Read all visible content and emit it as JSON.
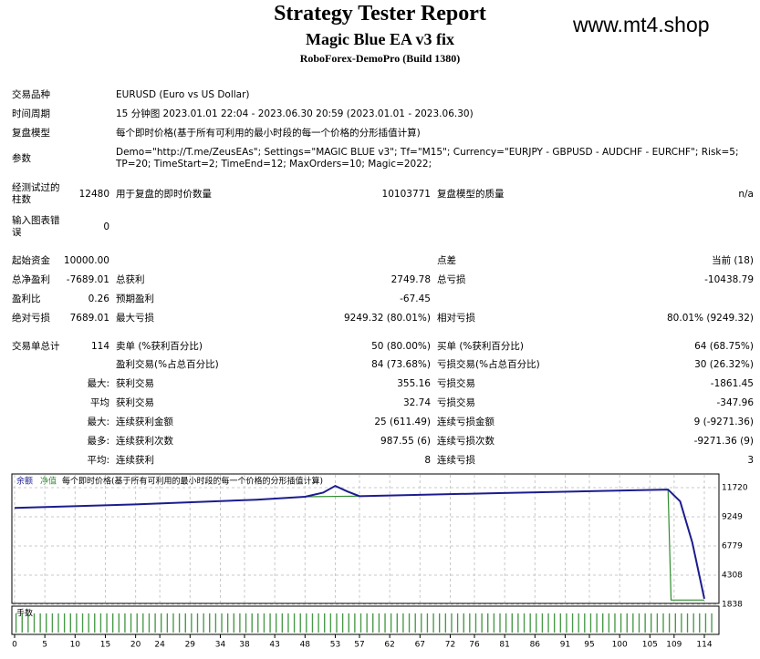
{
  "header": {
    "title": "Strategy Tester Report",
    "subtitle": "Magic Blue EA v3 fix",
    "server": "RoboForex-DemoPro (Build 1380)",
    "watermark": "www.mt4.shop"
  },
  "rows": [
    {
      "c1": "交易品种",
      "c3": "EURUSD (Euro vs US Dollar)"
    },
    {
      "c1": "时间周期",
      "c3": "15 分钟图 2023.01.01 22:04 - 2023.06.30 20:59 (2023.01.01 - 2023.06.30)"
    },
    {
      "c1": "复盘模型",
      "c3": "每个即时价格(基于所有可利用的最小时段的每一个价格的分形插值计算)"
    },
    {
      "c1": "参数",
      "c3": "Demo=\"http://T.me/ZeusEAs\"; Settings=\"MAGIC BLUE v3\"; Tf=\"M15\"; Currency=\"EURJPY - GBPUSD - AUDCHF - EURCHF\"; Risk=5; TP=20; TimeStart=2; TimeEnd=12; MaxOrders=10; Magic=2022;"
    },
    {
      "c1": "经测试过的柱数",
      "c2": "12480",
      "c3": "用于复盘的即时价数量",
      "c4": "10103771",
      "c5": "复盘模型的质量",
      "c6": "n/a"
    },
    {
      "c1": "输入图表错误",
      "c2": "0"
    },
    {
      "c1": "起始资金",
      "c2": "10000.00",
      "c5": "点差",
      "c6": "当前 (18)"
    },
    {
      "c1": "总净盈利",
      "c2": "-7689.01",
      "c3": "总获利",
      "c4": "2749.78",
      "c5": "总亏损",
      "c6": "-10438.79"
    },
    {
      "c1": "盈利比",
      "c2": "0.26",
      "c3": "预期盈利",
      "c4": "-67.45"
    },
    {
      "c1": "绝对亏损",
      "c2": "7689.01",
      "c3": "最大亏损",
      "c4": "9249.32 (80.01%)",
      "c5": "相对亏损",
      "c6": "80.01% (9249.32)"
    },
    {
      "c1": "交易单总计",
      "c2": "114",
      "c3": "卖单 (%获利百分比)",
      "c4": "50 (80.00%)",
      "c5": "买单 (%获利百分比)",
      "c6": "64 (68.75%)"
    },
    {
      "c3": "盈利交易(%占总百分比)",
      "c4": "84 (73.68%)",
      "c5": "亏损交易(%占总百分比)",
      "c6": "30 (26.32%)"
    },
    {
      "c2": "最大:",
      "c3": "获利交易",
      "c4": "355.16",
      "c5": "亏损交易",
      "c6": "-1861.45"
    },
    {
      "c2": "平均",
      "c3": "获利交易",
      "c4": "32.74",
      "c5": "亏损交易",
      "c6": "-347.96"
    },
    {
      "c2": "最大:",
      "c3": "连续获利金额",
      "c4": "25 (611.49)",
      "c5": "连续亏损金额",
      "c6": "9 (-9271.36)"
    },
    {
      "c2": "最多:",
      "c3": "连续获利次数",
      "c4": "987.55 (6)",
      "c5": "连续亏损次数",
      "c6": "-9271.36 (9)"
    },
    {
      "c2": "平均:",
      "c3": "连续获利",
      "c4": "8",
      "c5": "连续亏损",
      "c6": "3"
    }
  ],
  "chart": {
    "type": "line",
    "legend": [
      "余额",
      "净值",
      "每个即时价格(基于所有可利用的最小时段的每一个价格的分形插值计算)"
    ],
    "volume_label": "手数",
    "xlim": [
      0,
      114
    ],
    "ylim": [
      1684,
      12724
    ],
    "xticks": [
      0,
      5,
      10,
      15,
      20,
      24,
      29,
      34,
      38,
      43,
      48,
      53,
      57,
      62,
      67,
      72,
      76,
      81,
      86,
      91,
      95,
      100,
      105,
      109,
      114
    ],
    "yticks": [
      11720,
      9249,
      6779,
      4308,
      1838
    ],
    "series": [
      {
        "name": "余额",
        "color": "#1c1c8f",
        "x": [
          0,
          20,
          40,
          48,
          51,
          53,
          55,
          57,
          80,
          108,
          110,
          112,
          114
        ],
        "values": [
          10000,
          10300,
          10700,
          10950,
          11300,
          11870,
          11400,
          11000,
          11260,
          11560,
          10560,
          7090,
          2311
        ]
      },
      {
        "name": "净值",
        "color": "#2e8b2e",
        "x": [
          0,
          20,
          40,
          48,
          57,
          80,
          108,
          108.5,
          114
        ],
        "values": [
          10000,
          10300,
          10700,
          10950,
          11000,
          11260,
          11560,
          2200,
          2200
        ]
      }
    ]
  }
}
